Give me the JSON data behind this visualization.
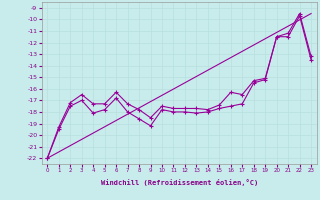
{
  "xlabel": "Windchill (Refroidissement éolien,°C)",
  "bg_color": "#c8ecec",
  "line_color": "#990099",
  "grid_color": "#b8dede",
  "x_values": [
    0,
    1,
    2,
    3,
    4,
    5,
    6,
    7,
    8,
    9,
    10,
    11,
    12,
    13,
    14,
    15,
    16,
    17,
    18,
    19,
    20,
    21,
    22,
    23
  ],
  "line1": [
    -22,
    -19.3,
    -17.2,
    -16.5,
    -17.3,
    -17.3,
    -16.3,
    -17.3,
    -17.8,
    -18.5,
    -17.5,
    -17.7,
    -17.7,
    -17.7,
    -17.8,
    -17.4,
    -16.3,
    -16.5,
    -15.3,
    -15.1,
    -11.5,
    -11.2,
    -9.5,
    -13.2
  ],
  "line2": [
    -22,
    -19.5,
    -17.5,
    -17.0,
    -18.1,
    -17.8,
    -16.8,
    -18.0,
    -18.6,
    -19.2,
    -17.8,
    -18.0,
    -18.0,
    -18.1,
    -18.0,
    -17.7,
    -17.5,
    -17.3,
    -15.5,
    -15.2,
    -11.5,
    -11.5,
    -9.7,
    -13.5
  ],
  "line3_x": [
    0,
    23
  ],
  "line3_y": [
    -22,
    -9.5
  ],
  "ylim": [
    -22.5,
    -8.5
  ],
  "xlim": [
    -0.5,
    23.5
  ],
  "yticks": [
    -22,
    -21,
    -20,
    -19,
    -18,
    -17,
    -16,
    -15,
    -14,
    -13,
    -12,
    -11,
    -10,
    -9
  ],
  "xticks": [
    0,
    1,
    2,
    3,
    4,
    5,
    6,
    7,
    8,
    9,
    10,
    11,
    12,
    13,
    14,
    15,
    16,
    17,
    18,
    19,
    20,
    21,
    22,
    23
  ],
  "marker": "+"
}
